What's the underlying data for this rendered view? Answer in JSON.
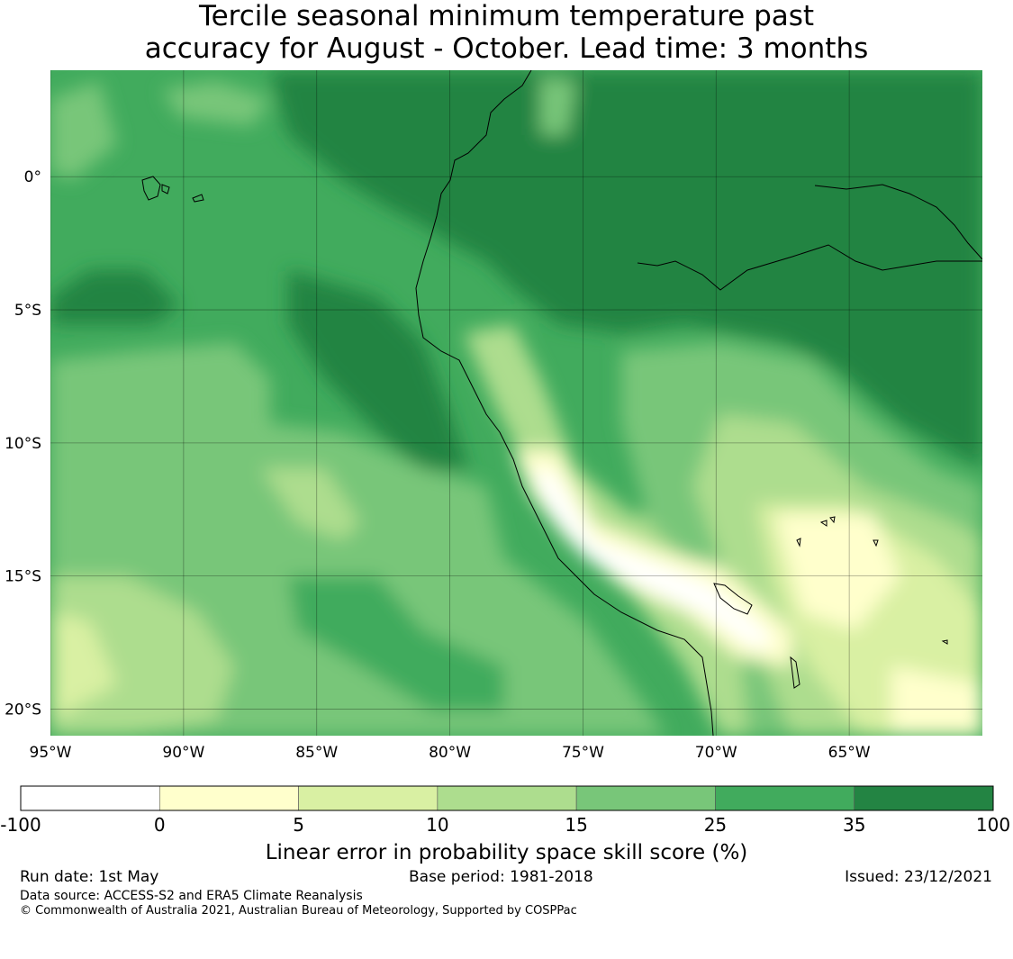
{
  "title_lines": [
    "Tercile seasonal minimum temperature past",
    "accuracy for August - October. Lead time: 3 months"
  ],
  "map": {
    "lon_range": [
      -95,
      -60
    ],
    "lat_range": [
      -21,
      4
    ],
    "x_ticks": [
      "95°W",
      "90°W",
      "85°W",
      "80°W",
      "75°W",
      "70°W",
      "65°W"
    ],
    "x_tick_values": [
      -95,
      -90,
      -85,
      -80,
      -75,
      -70,
      -65
    ],
    "y_ticks": [
      "0°",
      "5°S",
      "10°S",
      "15°S",
      "20°S"
    ],
    "y_tick_values": [
      0,
      -5,
      -10,
      -15,
      -20
    ]
  },
  "colorbar": {
    "tick_labels": [
      "-100",
      "0",
      "5",
      "10",
      "15",
      "25",
      "35",
      "100"
    ],
    "colors": [
      "#ffffff",
      "#ffffcc",
      "#d9f0a3",
      "#addd8e",
      "#78c679",
      "#41ab5d",
      "#238443"
    ],
    "label": "Linear error in probability space skill score (%)"
  },
  "footer": {
    "run_date": "Run date: 1st May",
    "base_period": "Base period: 1981-2018",
    "issued": "Issued: 23/12/2021",
    "data_source": "Data source: ACCESS-S2 and ERA5 Climate Reanalysis",
    "copyright": "© Commonwealth of Australia 2021, Australian Bureau of Meteorology, Supported by COSPPac"
  }
}
